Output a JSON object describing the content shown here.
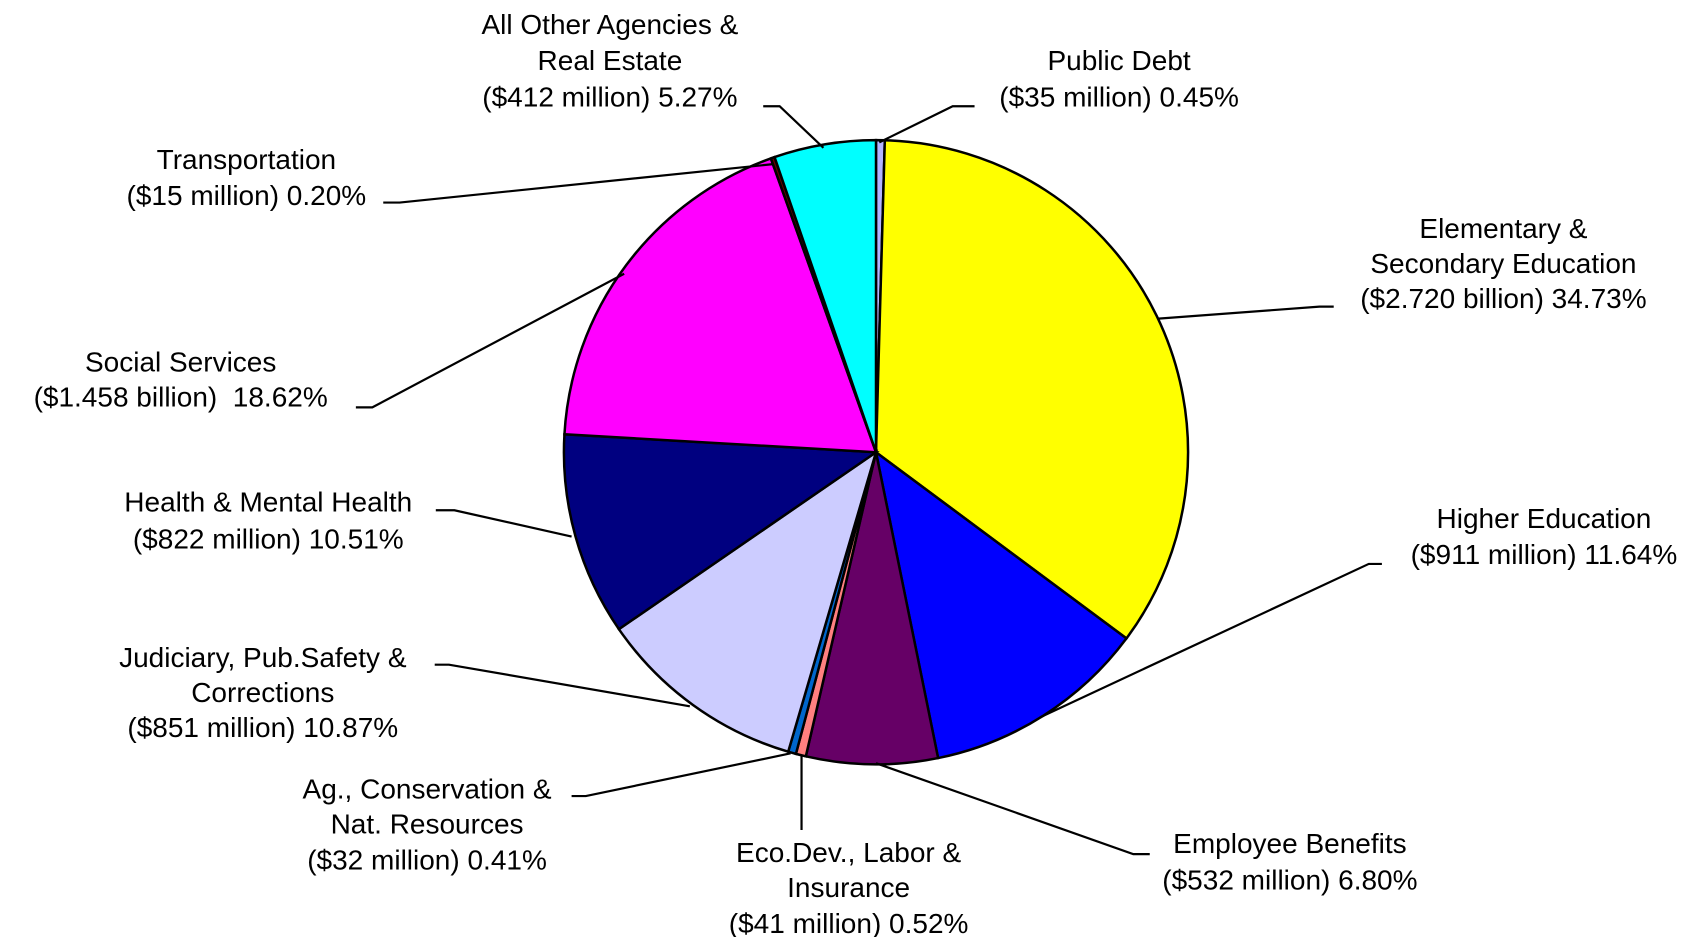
{
  "chart_data": {
    "type": "pie",
    "categories": [
      [
        "Public Debt"
      ],
      [
        "Elementary &",
        "Secondary Education"
      ],
      [
        "Higher Education"
      ],
      [
        "Employee Benefits"
      ],
      [
        "Eco.Dev., Labor &",
        "Insurance"
      ],
      [
        "Ag., Conservation &",
        "Nat. Resources"
      ],
      [
        "Judiciary, Pub.Safety &",
        "Corrections"
      ],
      [
        "Health & Mental Health"
      ],
      [
        "Social Services"
      ],
      [
        "Transportation"
      ],
      [
        "All Other Agencies &",
        "Real Estate"
      ]
    ],
    "values": [
      0.45,
      34.73,
      11.64,
      6.8,
      0.52,
      0.41,
      10.87,
      10.51,
      18.62,
      0.2,
      5.27
    ],
    "value_labels": [
      "($35 million) 0.45%",
      "($2.720 billion) 34.73%",
      "($911 million) 11.64%",
      "($532 million) 6.80%",
      "($41 million) 0.52%",
      "($32 million) 0.41%",
      "($851 million) 10.87%",
      "($822 million) 10.51%",
      "($1.458 billion)  18.62%",
      "($15 million) 0.20%",
      "($412 million) 5.27%"
    ],
    "colors": [
      "#b3b3ff",
      "#ffff00",
      "#0000ff",
      "#660066",
      "#ff8080",
      "#0066cc",
      "#ccccff",
      "#000080",
      "#ff00ff",
      "#660000",
      "#00ffff"
    ]
  }
}
